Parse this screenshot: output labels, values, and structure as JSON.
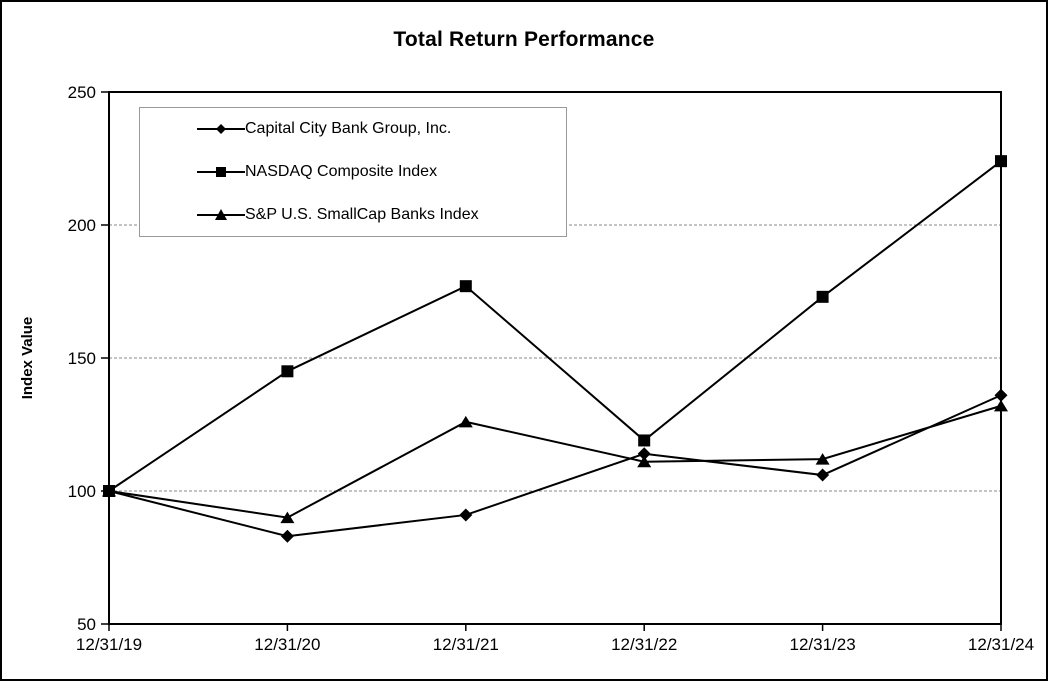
{
  "chart_data": {
    "type": "line",
    "title": "Total Return Performance",
    "xlabel": "",
    "ylabel": "Index Value",
    "x_labels": [
      "12/31/19",
      "12/31/20",
      "12/31/21",
      "12/31/22",
      "12/31/23",
      "12/31/24"
    ],
    "y_ticks": [
      50,
      100,
      150,
      200,
      250
    ],
    "ylim": [
      50,
      250
    ],
    "gridlines": [
      100,
      150,
      200
    ],
    "grid_style": "dashed",
    "legend_position": "upper-left",
    "series": [
      {
        "name": "Capital City Bank Group, Inc.",
        "marker": "diamond",
        "values": [
          100,
          83,
          91,
          114,
          106,
          136
        ]
      },
      {
        "name": "S&P U.S. SmallCap Banks Index",
        "marker": "triangle",
        "values": [
          100,
          90,
          126,
          111,
          112,
          132
        ]
      },
      {
        "name": "NASDAQ Composite Index",
        "marker": "square",
        "values": [
          100,
          145,
          177,
          119,
          173,
          224
        ]
      }
    ],
    "legend_order": [
      0,
      2,
      1
    ],
    "colors": {
      "line": "#000000",
      "grid": "#888888",
      "frame": "#000000",
      "legend_border": "#999999"
    }
  }
}
